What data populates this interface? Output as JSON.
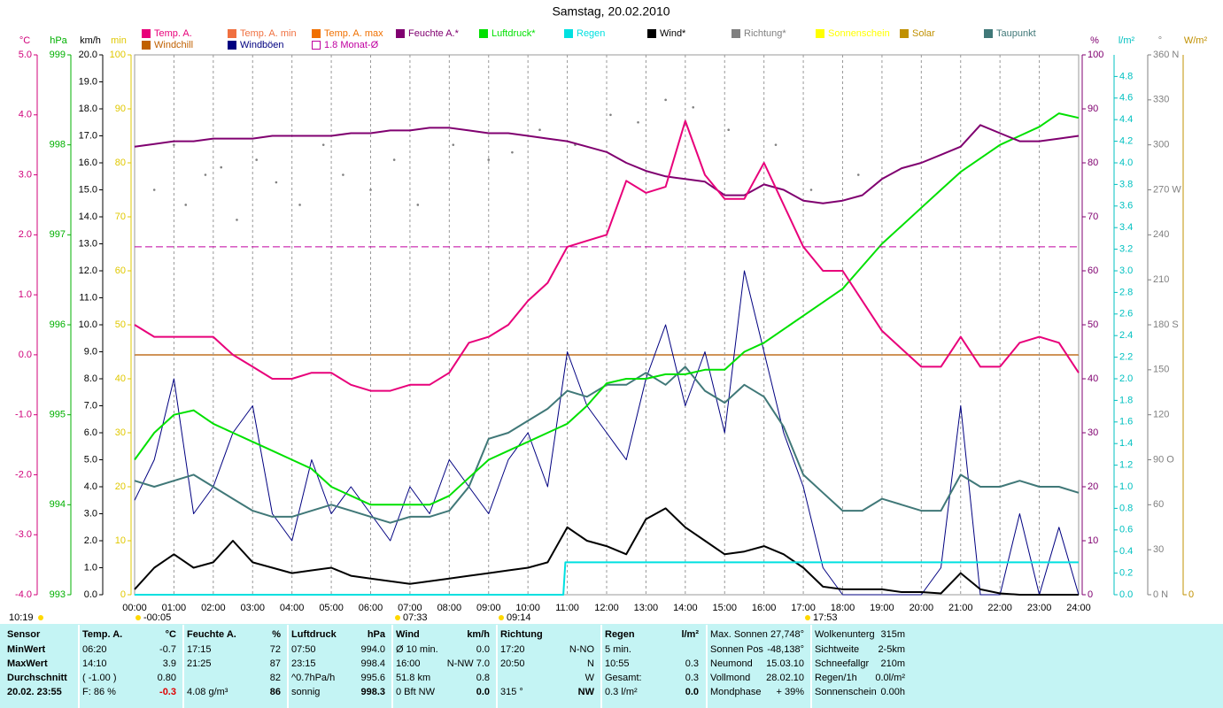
{
  "chart_data": {
    "type": "line",
    "title": "Samstag, 20.02.2010",
    "grid": "x",
    "xlim": [
      0,
      24
    ],
    "xticks": [
      {
        "value": 0,
        "label": "00:00"
      },
      {
        "value": 1,
        "label": "01:00"
      },
      {
        "value": 2,
        "label": "02:00"
      },
      {
        "value": 3,
        "label": "03:00"
      },
      {
        "value": 4,
        "label": "04:00"
      },
      {
        "value": 5,
        "label": "05:00"
      },
      {
        "value": 6,
        "label": "06:00"
      },
      {
        "value": 7,
        "label": "07:00"
      },
      {
        "value": 8,
        "label": "08:00"
      },
      {
        "value": 9,
        "label": "09:00"
      },
      {
        "value": 10,
        "label": "10:00"
      },
      {
        "value": 11,
        "label": "11:00"
      },
      {
        "value": 12,
        "label": "12:00"
      },
      {
        "value": 13,
        "label": "13:00"
      },
      {
        "value": 14,
        "label": "14:00"
      },
      {
        "value": 15,
        "label": "15:00"
      },
      {
        "value": 16,
        "label": "16:00"
      },
      {
        "value": 17,
        "label": "17:00"
      },
      {
        "value": 18,
        "label": "18:00"
      },
      {
        "value": 19,
        "label": "19:00"
      },
      {
        "value": 20,
        "label": "20:00"
      },
      {
        "value": 21,
        "label": "21:00"
      },
      {
        "value": 22,
        "label": "22:00"
      },
      {
        "value": 23,
        "label": "23:00"
      },
      {
        "value": 24,
        "label": "24:00"
      }
    ],
    "annotations": [
      {
        "x": 10,
        "text": "10:19"
      },
      {
        "x": 162,
        "text": "-00:05"
      },
      {
        "x": 455,
        "text": "07:33"
      },
      {
        "x": 572,
        "text": "09:14"
      },
      {
        "x": 918,
        "text": "17:53"
      }
    ],
    "axes": [
      {
        "unit": "°C",
        "color": "#d0007a",
        "lim": [
          -4,
          5
        ],
        "ticks": [
          {
            "value": 5,
            "label": "5.0"
          },
          {
            "value": 4,
            "label": "4.0"
          },
          {
            "value": 3,
            "label": "3.0"
          },
          {
            "value": 2,
            "label": "2.0"
          },
          {
            "value": 1,
            "label": "1.0"
          },
          {
            "value": 0,
            "label": "0.0"
          },
          {
            "value": -1,
            "label": "-1.0"
          },
          {
            "value": -2,
            "label": "-2.0"
          },
          {
            "value": -3,
            "label": "-3.0"
          },
          {
            "value": -4,
            "label": "-4.0"
          }
        ]
      },
      {
        "unit": "hPa",
        "color": "#00b000",
        "lim": [
          993,
          999
        ],
        "ticks": [
          999,
          998,
          997,
          996,
          995,
          994,
          993
        ]
      },
      {
        "unit": "km/h",
        "color": "#000000",
        "lim": [
          0,
          20
        ],
        "ticks": [
          {
            "value": 20,
            "label": "20.0"
          },
          {
            "value": 19,
            "label": "19.0"
          },
          {
            "value": 18,
            "label": "18.0"
          },
          {
            "value": 17,
            "label": "17.0"
          },
          {
            "value": 16,
            "label": "16.0"
          },
          {
            "value": 15,
            "label": "15.0"
          },
          {
            "value": 14,
            "label": "14.0"
          },
          {
            "value": 13,
            "label": "13.0"
          },
          {
            "value": 12,
            "label": "12.0"
          },
          {
            "value": 11,
            "label": "11.0"
          },
          {
            "value": 10,
            "label": "10.0"
          },
          {
            "value": 9,
            "label": "9.0"
          },
          {
            "value": 8,
            "label": "8.0"
          },
          {
            "value": 7,
            "label": "7.0"
          },
          {
            "value": 6,
            "label": "6.0"
          },
          {
            "value": 5,
            "label": "5.0"
          },
          {
            "value": 4,
            "label": "4.0"
          },
          {
            "value": 3,
            "label": "3.0"
          },
          {
            "value": 2,
            "label": "2.0"
          },
          {
            "value": 1,
            "label": "1.0"
          },
          {
            "value": 0,
            "label": "0.0"
          }
        ]
      },
      {
        "unit": "min",
        "color": "#e0c800",
        "lim": [
          0,
          100
        ],
        "ticks": [
          100,
          90,
          80,
          70,
          60,
          50,
          40,
          30,
          20,
          10,
          0
        ]
      },
      {
        "unit": "%",
        "color": "#800070",
        "lim": [
          0,
          100
        ],
        "ticks": [
          100,
          90,
          80,
          70,
          60,
          50,
          40,
          30,
          20,
          10,
          0
        ]
      },
      {
        "unit": "l/m²",
        "color": "#00c0c0",
        "lim": [
          0,
          5
        ],
        "ticks": [
          {
            "value": 4.8,
            "label": "4.8"
          },
          {
            "value": 4.6,
            "label": "4.6"
          },
          {
            "value": 4.4,
            "label": "4.4"
          },
          {
            "value": 4.2,
            "label": "4.2"
          },
          {
            "value": 4,
            "label": "4.0"
          },
          {
            "value": 3.8,
            "label": "3.8"
          },
          {
            "value": 3.6,
            "label": "3.6"
          },
          {
            "value": 3.4,
            "label": "3.4"
          },
          {
            "value": 3.2,
            "label": "3.2"
          },
          {
            "value": 3,
            "label": "3.0"
          },
          {
            "value": 2.8,
            "label": "2.8"
          },
          {
            "value": 2.6,
            "label": "2.6"
          },
          {
            "value": 2.4,
            "label": "2.4"
          },
          {
            "value": 2.2,
            "label": "2.2"
          },
          {
            "value": 2,
            "label": "2.0"
          },
          {
            "value": 1.8,
            "label": "1.8"
          },
          {
            "value": 1.6,
            "label": "1.6"
          },
          {
            "value": 1.4,
            "label": "1.4"
          },
          {
            "value": 1.2,
            "label": "1.2"
          },
          {
            "value": 1,
            "label": "1.0"
          },
          {
            "value": 0.8,
            "label": "0.8"
          },
          {
            "value": 0.6,
            "label": "0.6"
          },
          {
            "value": 0.4,
            "label": "0.4"
          },
          {
            "value": 0.2,
            "label": "0.2"
          },
          {
            "value": 0,
            "label": "0.0"
          }
        ]
      },
      {
        "unit": "°",
        "color": "#808080",
        "lim": [
          0,
          360
        ],
        "ticks": [
          {
            "value": 360,
            "label": "360 N"
          },
          330,
          300,
          {
            "value": 270,
            "label": "270 W"
          },
          240,
          210,
          {
            "value": 180,
            "label": "180 S"
          },
          150,
          120,
          {
            "value": 90,
            "label": "90 O"
          },
          60,
          30,
          {
            "value": 0,
            "label": "0 N"
          }
        ]
      },
      {
        "unit": "W/m²",
        "color": "#c09000",
        "ticks": [
          0
        ]
      }
    ],
    "x": [
      0,
      0.5,
      1,
      1.5,
      2,
      2.5,
      3,
      3.5,
      4,
      4.5,
      5,
      5.5,
      6,
      6.5,
      7,
      7.5,
      8,
      8.5,
      9,
      9.5,
      10,
      10.5,
      11,
      11.5,
      12,
      12.5,
      13,
      13.5,
      14,
      14.5,
      15,
      15.5,
      16,
      16.5,
      17,
      17.5,
      18,
      18.5,
      19,
      19.5,
      20,
      20.5,
      21,
      21.5,
      22,
      22.5,
      23,
      23.5,
      24
    ],
    "series": [
      {
        "name": "Temp. A.",
        "color": "#e8007a",
        "axis": "°C",
        "values": [
          0.5,
          0.3,
          0.3,
          0.3,
          0.3,
          0.0,
          -0.2,
          -0.4,
          -0.4,
          -0.3,
          -0.3,
          -0.5,
          -0.6,
          -0.6,
          -0.5,
          -0.5,
          -0.3,
          0.2,
          0.3,
          0.5,
          0.9,
          1.2,
          1.8,
          1.9,
          2.0,
          2.9,
          2.7,
          2.8,
          3.9,
          3.0,
          2.6,
          2.6,
          3.2,
          2.5,
          1.8,
          1.4,
          1.4,
          0.9,
          0.4,
          0.1,
          -0.2,
          -0.2,
          0.3,
          -0.2,
          -0.2,
          0.2,
          0.3,
          0.2,
          -0.3
        ]
      },
      {
        "name": "Windchill",
        "color": "#c06000"
      },
      {
        "name": "Temp. A. min",
        "color": "#f07040"
      },
      {
        "name": "Windböen",
        "color": "#000080",
        "axis": "km/h",
        "values": [
          3.5,
          5,
          8,
          3,
          4,
          6,
          7,
          3,
          2,
          5,
          3,
          4,
          3,
          2,
          4,
          3,
          5,
          4,
          3,
          5,
          6,
          4,
          9,
          7,
          6,
          5,
          8,
          10,
          7,
          9,
          6,
          12,
          9,
          6,
          4,
          1,
          0,
          0,
          0,
          0,
          0,
          1,
          7,
          0,
          0,
          3,
          0,
          2.5,
          0
        ]
      },
      {
        "name": "Temp. A. max",
        "color": "#f07000"
      },
      {
        "name": "1.8 Monat-Ø",
        "color": "#c000a0",
        "axis": "°C",
        "level": 1.8,
        "dashed": true
      },
      {
        "name": "Feuchte A.*",
        "color": "#800070",
        "axis": "%",
        "values": [
          83,
          83.5,
          84,
          84,
          84.5,
          84.5,
          84.5,
          85,
          85,
          85,
          85,
          85.5,
          85.5,
          86,
          86,
          86.5,
          86.5,
          86,
          85.5,
          85.5,
          85,
          84.5,
          84,
          83,
          82,
          80,
          78.5,
          77.5,
          77,
          76.5,
          74,
          74,
          76,
          75,
          73,
          72.5,
          73,
          74,
          77,
          79,
          80,
          81.5,
          83,
          87,
          85.5,
          84,
          84,
          84.5,
          85
        ]
      },
      {
        "name": "Luftdruck*",
        "color": "#00e000",
        "axis": "hPa",
        "values": [
          994.5,
          994.8,
          995.0,
          995.05,
          994.9,
          994.8,
          994.7,
          994.6,
          994.5,
          994.4,
          994.2,
          994.1,
          994.0,
          994.0,
          994.0,
          994.0,
          994.1,
          994.3,
          994.5,
          994.6,
          994.7,
          994.8,
          994.9,
          995.1,
          995.35,
          995.4,
          995.4,
          995.45,
          995.45,
          995.5,
          995.5,
          995.7,
          995.8,
          995.95,
          996.1,
          996.25,
          996.4,
          996.65,
          996.9,
          997.1,
          997.3,
          997.5,
          997.7,
          997.85,
          998.0,
          998.1,
          998.2,
          998.35,
          998.3
        ]
      },
      {
        "name": "Regen",
        "color": "#00e0e0",
        "axis": "l/m²",
        "x": [
          0,
          10.9,
          10.95,
          24
        ],
        "values": [
          0,
          0,
          0.3,
          0.3
        ]
      },
      {
        "name": "Wind*",
        "color": "#000000",
        "axis": "km/h",
        "values": [
          0.2,
          1.0,
          1.5,
          1.0,
          1.2,
          2.0,
          1.2,
          1.0,
          0.8,
          0.9,
          1.0,
          0.7,
          0.6,
          0.5,
          0.4,
          0.5,
          0.6,
          0.7,
          0.8,
          0.9,
          1.0,
          1.2,
          2.5,
          2.0,
          1.8,
          1.5,
          2.8,
          3.2,
          2.5,
          2.0,
          1.5,
          1.6,
          1.8,
          1.5,
          1.0,
          0.3,
          0.2,
          0.2,
          0.2,
          0.1,
          0.1,
          0.05,
          0.8,
          0.2,
          0.05,
          0,
          0,
          0,
          0
        ]
      },
      {
        "name": "Richtung*",
        "color": "#808080",
        "axis": "°",
        "dots": true,
        "x": [
          0.5,
          1,
          1.3,
          1.8,
          2.2,
          2.6,
          3.1,
          3.6,
          4.2,
          4.8,
          5.3,
          6.0,
          6.6,
          7.2,
          8.1,
          9.0,
          9.6,
          10.3,
          11.2,
          12.1,
          12.8,
          13.5,
          14.2,
          15.1,
          16.3,
          17.2,
          18.4
        ],
        "values": [
          270,
          300,
          260,
          280,
          285,
          250,
          290,
          275,
          260,
          300,
          280,
          270,
          290,
          260,
          300,
          290,
          295,
          310,
          300,
          320,
          315,
          330,
          325,
          310,
          300,
          270,
          280
        ]
      },
      {
        "name": "Sonnenschein",
        "color": "#ffff00"
      },
      {
        "name": "Solar",
        "color": "#c09000"
      },
      {
        "name": "Taupunkt",
        "color": "#407878",
        "axis": "°C",
        "values": [
          -2.1,
          -2.2,
          -2.1,
          -2.0,
          -2.2,
          -2.4,
          -2.6,
          -2.7,
          -2.7,
          -2.6,
          -2.5,
          -2.6,
          -2.7,
          -2.8,
          -2.7,
          -2.7,
          -2.6,
          -2.2,
          -1.4,
          -1.3,
          -1.1,
          -0.9,
          -0.6,
          -0.7,
          -0.5,
          -0.5,
          -0.3,
          -0.5,
          -0.2,
          -0.6,
          -0.8,
          -0.5,
          -0.7,
          -1.2,
          -2.0,
          -2.3,
          -2.6,
          -2.6,
          -2.4,
          -2.5,
          -2.6,
          -2.6,
          -2.0,
          -2.2,
          -2.2,
          -2.1,
          -2.2,
          -2.2,
          -2.3
        ]
      }
    ]
  },
  "table": {
    "columns": [
      {
        "title": "Sensor",
        "rows": [
          [
            "MinWert"
          ],
          [
            "MaxWert"
          ],
          [
            "Durchschnitt"
          ],
          [
            "20.02. 23:55"
          ]
        ]
      },
      {
        "title": "Temp. A.",
        "unit": "°C",
        "rows": [
          [
            "06:20",
            "-0.7"
          ],
          [
            "14:10",
            "3.9"
          ],
          [
            "( -1.00 )",
            "0.80"
          ],
          [
            "F: 86 %",
            "-0.3"
          ]
        ]
      },
      {
        "title": "Feuchte A.",
        "unit": "%",
        "rows": [
          [
            "17:15",
            "72"
          ],
          [
            "21:25",
            "87"
          ],
          [
            null,
            "82"
          ],
          [
            "4.08 g/m³",
            "86"
          ]
        ]
      },
      {
        "title": "Luftdruck",
        "unit": "hPa",
        "rows": [
          [
            "07:50",
            "994.0"
          ],
          [
            "23:15",
            "998.4"
          ],
          [
            "^0.7hPa/h",
            "995.6"
          ],
          [
            "sonnig",
            "998.3"
          ]
        ]
      },
      {
        "title": "Wind",
        "unit": "km/h",
        "rows": [
          [
            "Ø 10 min.",
            "0.0"
          ],
          [
            "16:00",
            "N-NW 7.0"
          ],
          [
            "51.8 km",
            "0.8"
          ],
          [
            "0 Bft NW",
            "0.0"
          ]
        ]
      },
      {
        "title": "Richtung",
        "rows": [
          [
            "17:20",
            "N-NO"
          ],
          [
            "20:50",
            "N"
          ],
          [
            null,
            "W"
          ],
          [
            "315 °",
            "NW"
          ]
        ]
      },
      {
        "title": "Regen",
        "unit": "l/m²",
        "rows": [
          [
            "5 min.",
            null
          ],
          [
            "10:55",
            "0.3"
          ],
          [
            "Gesamt:",
            "0.3"
          ],
          [
            "0.3 l/m²",
            "0.0"
          ]
        ]
      },
      {
        "rows": [
          [
            "Max. Sonnen",
            "27,748°"
          ],
          [
            "Sonnen Pos",
            "-48,138°"
          ],
          [
            "Neumond",
            "15.03.10"
          ],
          [
            "Vollmond",
            "28.02.10"
          ],
          [
            "Mondphase",
            "+ 39%"
          ]
        ]
      },
      {
        "rows": [
          [
            "Wolkenunterg",
            "315m"
          ],
          [
            "Sichtweite",
            "2-5km"
          ],
          [
            "Schneefallgr",
            "210m"
          ],
          [
            "Regen/1h",
            "0.0l/m²"
          ],
          [
            "Sonnenschein",
            "0.00h"
          ]
        ]
      }
    ]
  }
}
